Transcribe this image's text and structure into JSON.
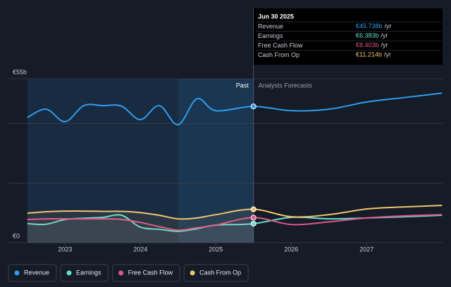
{
  "chart_data": {
    "type": "line",
    "x": [
      2022.5,
      2022.75,
      2023,
      2023.25,
      2023.5,
      2023.75,
      2024,
      2024.25,
      2024.5,
      2024.75,
      2025,
      2025.5,
      2026,
      2026.5,
      2027,
      2027.5,
      2028
    ],
    "series": [
      {
        "name": "Revenue",
        "color": "#2f9df0",
        "values": [
          42,
          44.8,
          40.6,
          46,
          46,
          45.8,
          41.3,
          46,
          39.6,
          48.3,
          44.3,
          45.738,
          44.3,
          44.8,
          47.2,
          48.7,
          50.2
        ]
      },
      {
        "name": "Earnings",
        "color": "#5fe3cf",
        "values": [
          6.4,
          6.2,
          7.8,
          8.2,
          8.5,
          9.2,
          5.2,
          4.5,
          3.8,
          4.7,
          5.9,
          6.383,
          8.5,
          8,
          8.3,
          8.7,
          9.2
        ]
      },
      {
        "name": "Free Cash Flow",
        "color": "#e0558a",
        "values": [
          7.8,
          8,
          8,
          8,
          8,
          7.8,
          6.8,
          5.4,
          4.2,
          5,
          5.9,
          8.403,
          6.1,
          7,
          8.3,
          9,
          9.4
        ]
      },
      {
        "name": "Cash From Op",
        "color": "#f3c26e",
        "values": [
          9.9,
          10.4,
          10.6,
          10.6,
          10.5,
          10.5,
          10.1,
          9.2,
          8.0,
          8.3,
          9.4,
          11.214,
          8.7,
          9.4,
          11.3,
          12,
          12.5
        ]
      }
    ],
    "xlim": [
      2022.25,
      2028
    ],
    "xticks": [
      2023,
      2024,
      2025,
      2026,
      2027
    ],
    "ylim": [
      0,
      55
    ],
    "yticks": [
      {
        "value": 0,
        "label": "€0"
      },
      {
        "value": 20,
        "label": null
      },
      {
        "value": 40,
        "label": null
      },
      {
        "value": 55,
        "label": "€55b"
      }
    ],
    "grid": true,
    "regions": [
      "Past",
      "Analysts Forecasts"
    ],
    "tooltip": {
      "title": "Jun 30 2025",
      "rows": [
        {
          "label": "Revenue",
          "value": "€45.738b",
          "unit": "/yr"
        },
        {
          "label": "Earnings",
          "value": "€6.383b",
          "unit": "/yr"
        },
        {
          "label": "Free Cash Flow",
          "value": "€8.403b",
          "unit": "/yr"
        },
        {
          "label": "Cash From Op",
          "value": "€11.214b",
          "unit": "/yr"
        }
      ]
    }
  }
}
